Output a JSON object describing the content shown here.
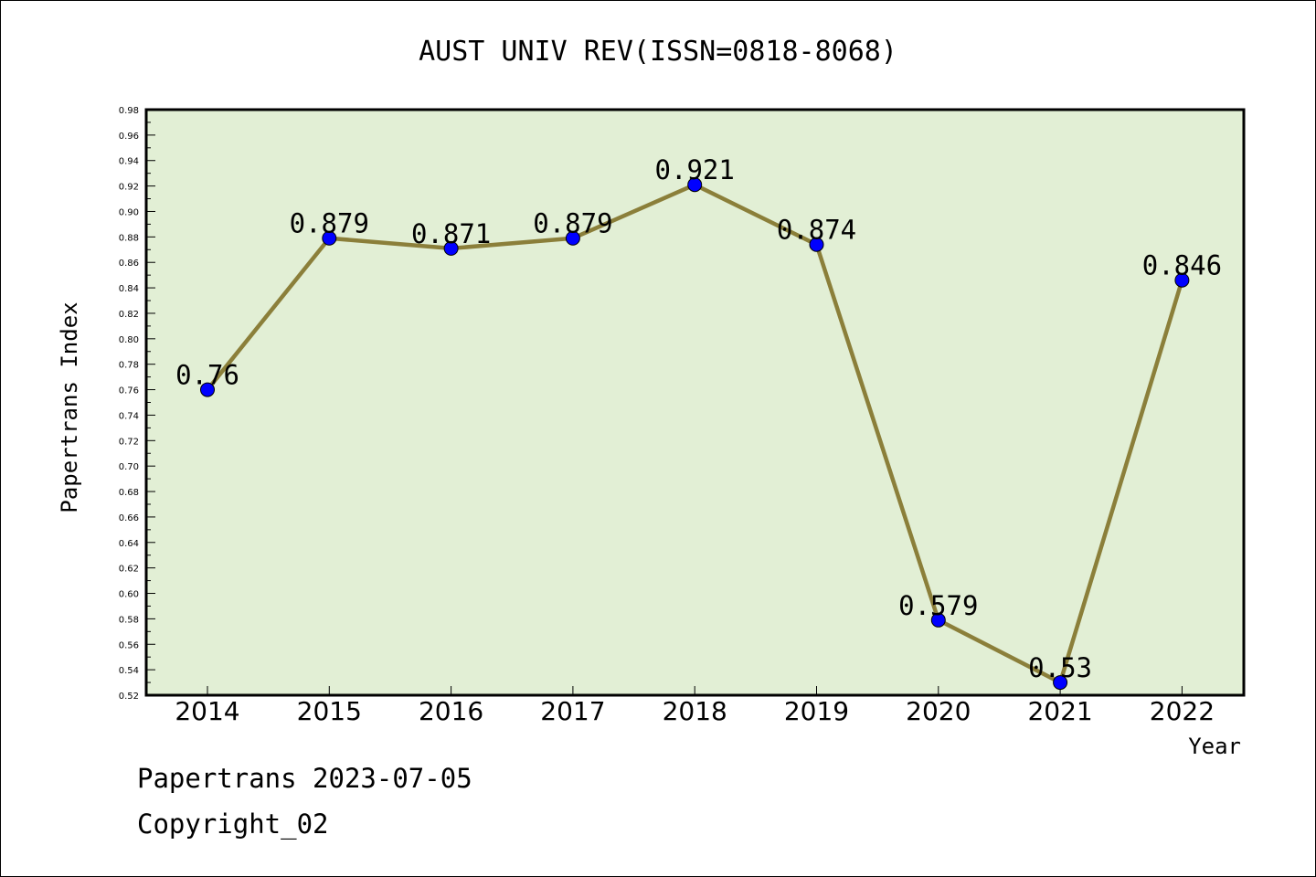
{
  "chart_data": {
    "type": "line",
    "title": "AUST UNIV REV(ISSN=0818-8068)",
    "xlabel": "Year",
    "ylabel": "Papertrans Index",
    "categories": [
      "2014",
      "2015",
      "2016",
      "2017",
      "2018",
      "2019",
      "2020",
      "2021",
      "2022"
    ],
    "series": [
      {
        "values": [
          0.76,
          0.879,
          0.871,
          0.879,
          0.921,
          0.874,
          0.579,
          0.53,
          0.846
        ],
        "data_labels": [
          "0.76",
          "0.879",
          "0.871",
          "0.879",
          "0.921",
          "0.874",
          "0.579",
          "0.53",
          "0.846"
        ]
      }
    ],
    "ylim": [
      0.52,
      0.98
    ],
    "ytick_step": 0.02,
    "grid": false,
    "colors": {
      "plot_background": "#e2efd5",
      "line": "#8b7f3a",
      "marker": "#0000ff"
    }
  },
  "footer": {
    "line1": "Papertrans 2023-07-05",
    "line2": "Copyright_02"
  }
}
